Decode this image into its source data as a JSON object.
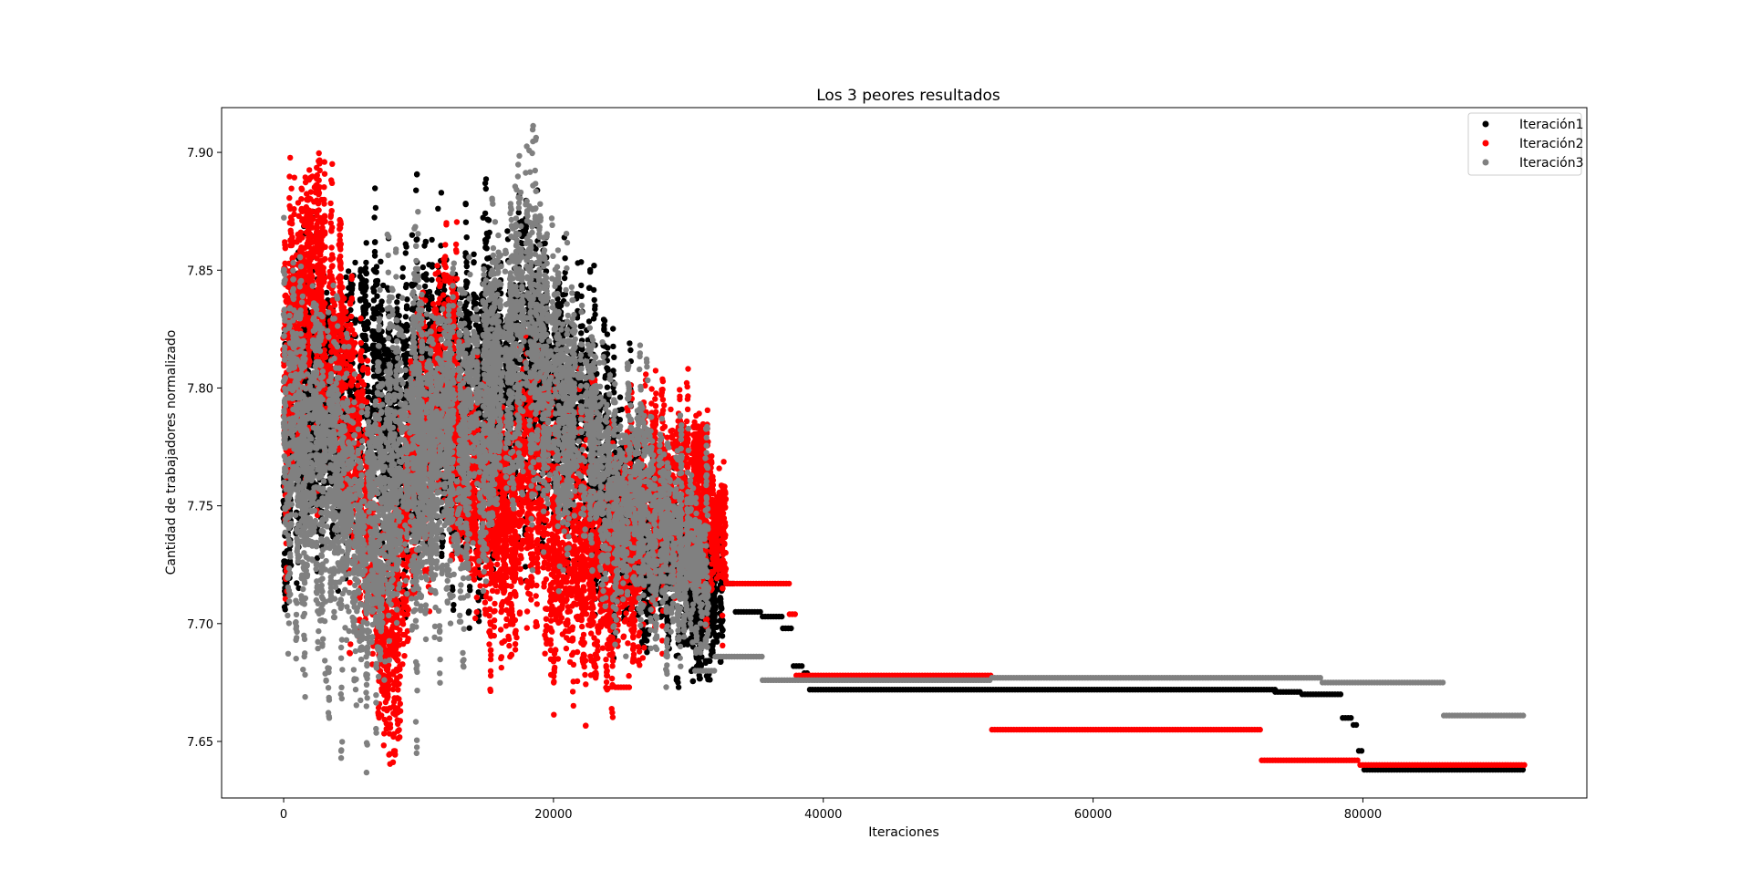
{
  "chart_data": {
    "type": "scatter",
    "title": "Los 3 peores resultados",
    "xlabel": "Iteraciones",
    "ylabel": "Cantidad de trabajadores normalizado",
    "xlim": [
      -4600,
      96600
    ],
    "ylim": [
      7.626,
      7.919
    ],
    "xticks": [
      0,
      20000,
      40000,
      60000,
      80000
    ],
    "xtick_labels": [
      "0",
      "20000",
      "40000",
      "60000",
      "80000"
    ],
    "yticks": [
      7.65,
      7.7,
      7.75,
      7.8,
      7.85,
      7.9
    ],
    "ytick_labels": [
      "7.65",
      "7.70",
      "7.75",
      "7.80",
      "7.85",
      "7.90"
    ],
    "grid": false,
    "legend_position": "top-right",
    "series": [
      {
        "name": "Iteración1",
        "color": "#000000",
        "noisy_profile": [
          [
            0,
            7.77
          ],
          [
            2000,
            7.8
          ],
          [
            4000,
            7.79
          ],
          [
            6000,
            7.8
          ],
          [
            8000,
            7.78
          ],
          [
            10000,
            7.79
          ],
          [
            12000,
            7.8
          ],
          [
            14000,
            7.79
          ],
          [
            16000,
            7.8
          ],
          [
            18000,
            7.81
          ],
          [
            20000,
            7.8
          ],
          [
            22000,
            7.79
          ],
          [
            24000,
            7.76
          ],
          [
            26000,
            7.74
          ],
          [
            28000,
            7.73
          ],
          [
            30000,
            7.72
          ],
          [
            32000,
            7.71
          ]
        ],
        "noisy_spread": [
          [
            0,
            0.055
          ],
          [
            10000,
            0.065
          ],
          [
            20000,
            0.06
          ],
          [
            26000,
            0.045
          ],
          [
            32000,
            0.03
          ]
        ],
        "noisy_range": [
          0,
          32500
        ],
        "steps": [
          [
            32500,
            33500,
            7.717
          ],
          [
            33500,
            35500,
            7.705
          ],
          [
            35500,
            37000,
            7.703
          ],
          [
            37000,
            37800,
            7.698
          ],
          [
            37800,
            38600,
            7.682
          ],
          [
            38600,
            39000,
            7.679
          ],
          [
            39000,
            73500,
            7.672
          ],
          [
            73500,
            75500,
            7.671
          ],
          [
            75500,
            78500,
            7.67
          ],
          [
            78500,
            79300,
            7.66
          ],
          [
            79300,
            79700,
            7.657
          ],
          [
            79700,
            80100,
            7.646
          ],
          [
            80100,
            92000,
            7.638
          ]
        ]
      },
      {
        "name": "Iteración2",
        "color": "#ff0000",
        "noisy_profile": [
          [
            0,
            7.8
          ],
          [
            2000,
            7.85
          ],
          [
            4000,
            7.82
          ],
          [
            6000,
            7.74
          ],
          [
            8000,
            7.69
          ],
          [
            10000,
            7.78
          ],
          [
            12000,
            7.8
          ],
          [
            14000,
            7.75
          ],
          [
            16000,
            7.74
          ],
          [
            18000,
            7.77
          ],
          [
            20000,
            7.74
          ],
          [
            22000,
            7.73
          ],
          [
            24000,
            7.72
          ],
          [
            26000,
            7.74
          ],
          [
            28000,
            7.76
          ],
          [
            30000,
            7.76
          ],
          [
            32000,
            7.74
          ]
        ],
        "noisy_spread": [
          [
            0,
            0.06
          ],
          [
            10000,
            0.05
          ],
          [
            20000,
            0.05
          ],
          [
            26000,
            0.05
          ],
          [
            32000,
            0.03
          ]
        ],
        "noisy_range": [
          0,
          32800
        ],
        "steps": [
          [
            24600,
            25800,
            7.673
          ],
          [
            32800,
            37500,
            7.717
          ],
          [
            37500,
            38000,
            7.704
          ],
          [
            38000,
            52500,
            7.678
          ],
          [
            52500,
            72500,
            7.655
          ],
          [
            72500,
            79800,
            7.642
          ],
          [
            79800,
            92000,
            7.64
          ]
        ]
      },
      {
        "name": "Iteración3",
        "color": "#808080",
        "noisy_profile": [
          [
            0,
            7.77
          ],
          [
            2000,
            7.77
          ],
          [
            4000,
            7.76
          ],
          [
            6000,
            7.73
          ],
          [
            8000,
            7.76
          ],
          [
            10000,
            7.77
          ],
          [
            12000,
            7.77
          ],
          [
            14000,
            7.78
          ],
          [
            16000,
            7.8
          ],
          [
            18000,
            7.83
          ],
          [
            20000,
            7.8
          ],
          [
            22000,
            7.79
          ],
          [
            24000,
            7.76
          ],
          [
            26000,
            7.75
          ],
          [
            28000,
            7.74
          ],
          [
            30000,
            7.73
          ],
          [
            32000,
            7.72
          ]
        ],
        "noisy_spread": [
          [
            0,
            0.07
          ],
          [
            10000,
            0.065
          ],
          [
            18000,
            0.06
          ],
          [
            26000,
            0.05
          ],
          [
            32000,
            0.035
          ]
        ],
        "noisy_range": [
          0,
          31500
        ],
        "steps": [
          [
            26000,
            29000,
            7.718
          ],
          [
            29000,
            30500,
            7.725
          ],
          [
            30500,
            32000,
            7.68
          ],
          [
            32000,
            35500,
            7.686
          ],
          [
            35500,
            52500,
            7.676
          ],
          [
            52500,
            77000,
            7.677
          ],
          [
            77000,
            86000,
            7.675
          ],
          [
            86000,
            92000,
            7.661
          ]
        ]
      }
    ]
  }
}
